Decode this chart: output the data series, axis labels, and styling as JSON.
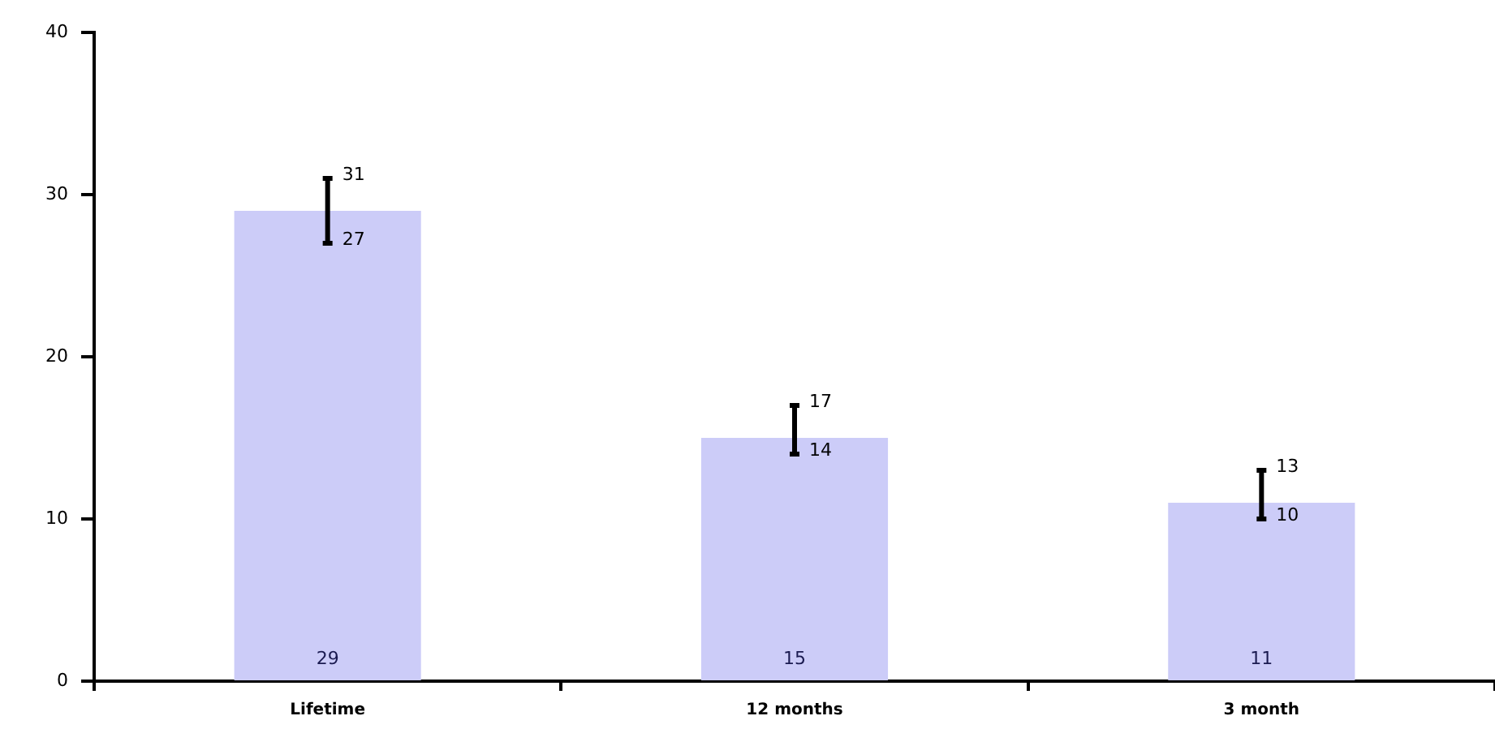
{
  "chart_data": {
    "type": "bar",
    "categories": [
      "Lifetime",
      "12 months",
      "3 month"
    ],
    "values": [
      29,
      15,
      11
    ],
    "errors": [
      [
        27,
        31
      ],
      [
        14,
        17
      ],
      [
        10,
        13
      ]
    ],
    "annotations": [
      {
        "text": "31",
        "x": "Lifetime",
        "y": 31
      },
      {
        "text": "27",
        "x": "Lifetime",
        "y": 27
      },
      {
        "text": "17",
        "x": "12 months",
        "y": 17
      },
      {
        "text": "14",
        "x": "12 months",
        "y": 14
      },
      {
        "text": "13",
        "x": "3 month",
        "y": 13
      },
      {
        "text": "10",
        "x": "3 month",
        "y": 10
      }
    ],
    "color": "#ccccf8",
    "data_labels": true,
    "ylim": [
      0,
      40
    ],
    "yticks": [
      0,
      10,
      20,
      30,
      40
    ],
    "grid": false,
    "legend": false
  }
}
